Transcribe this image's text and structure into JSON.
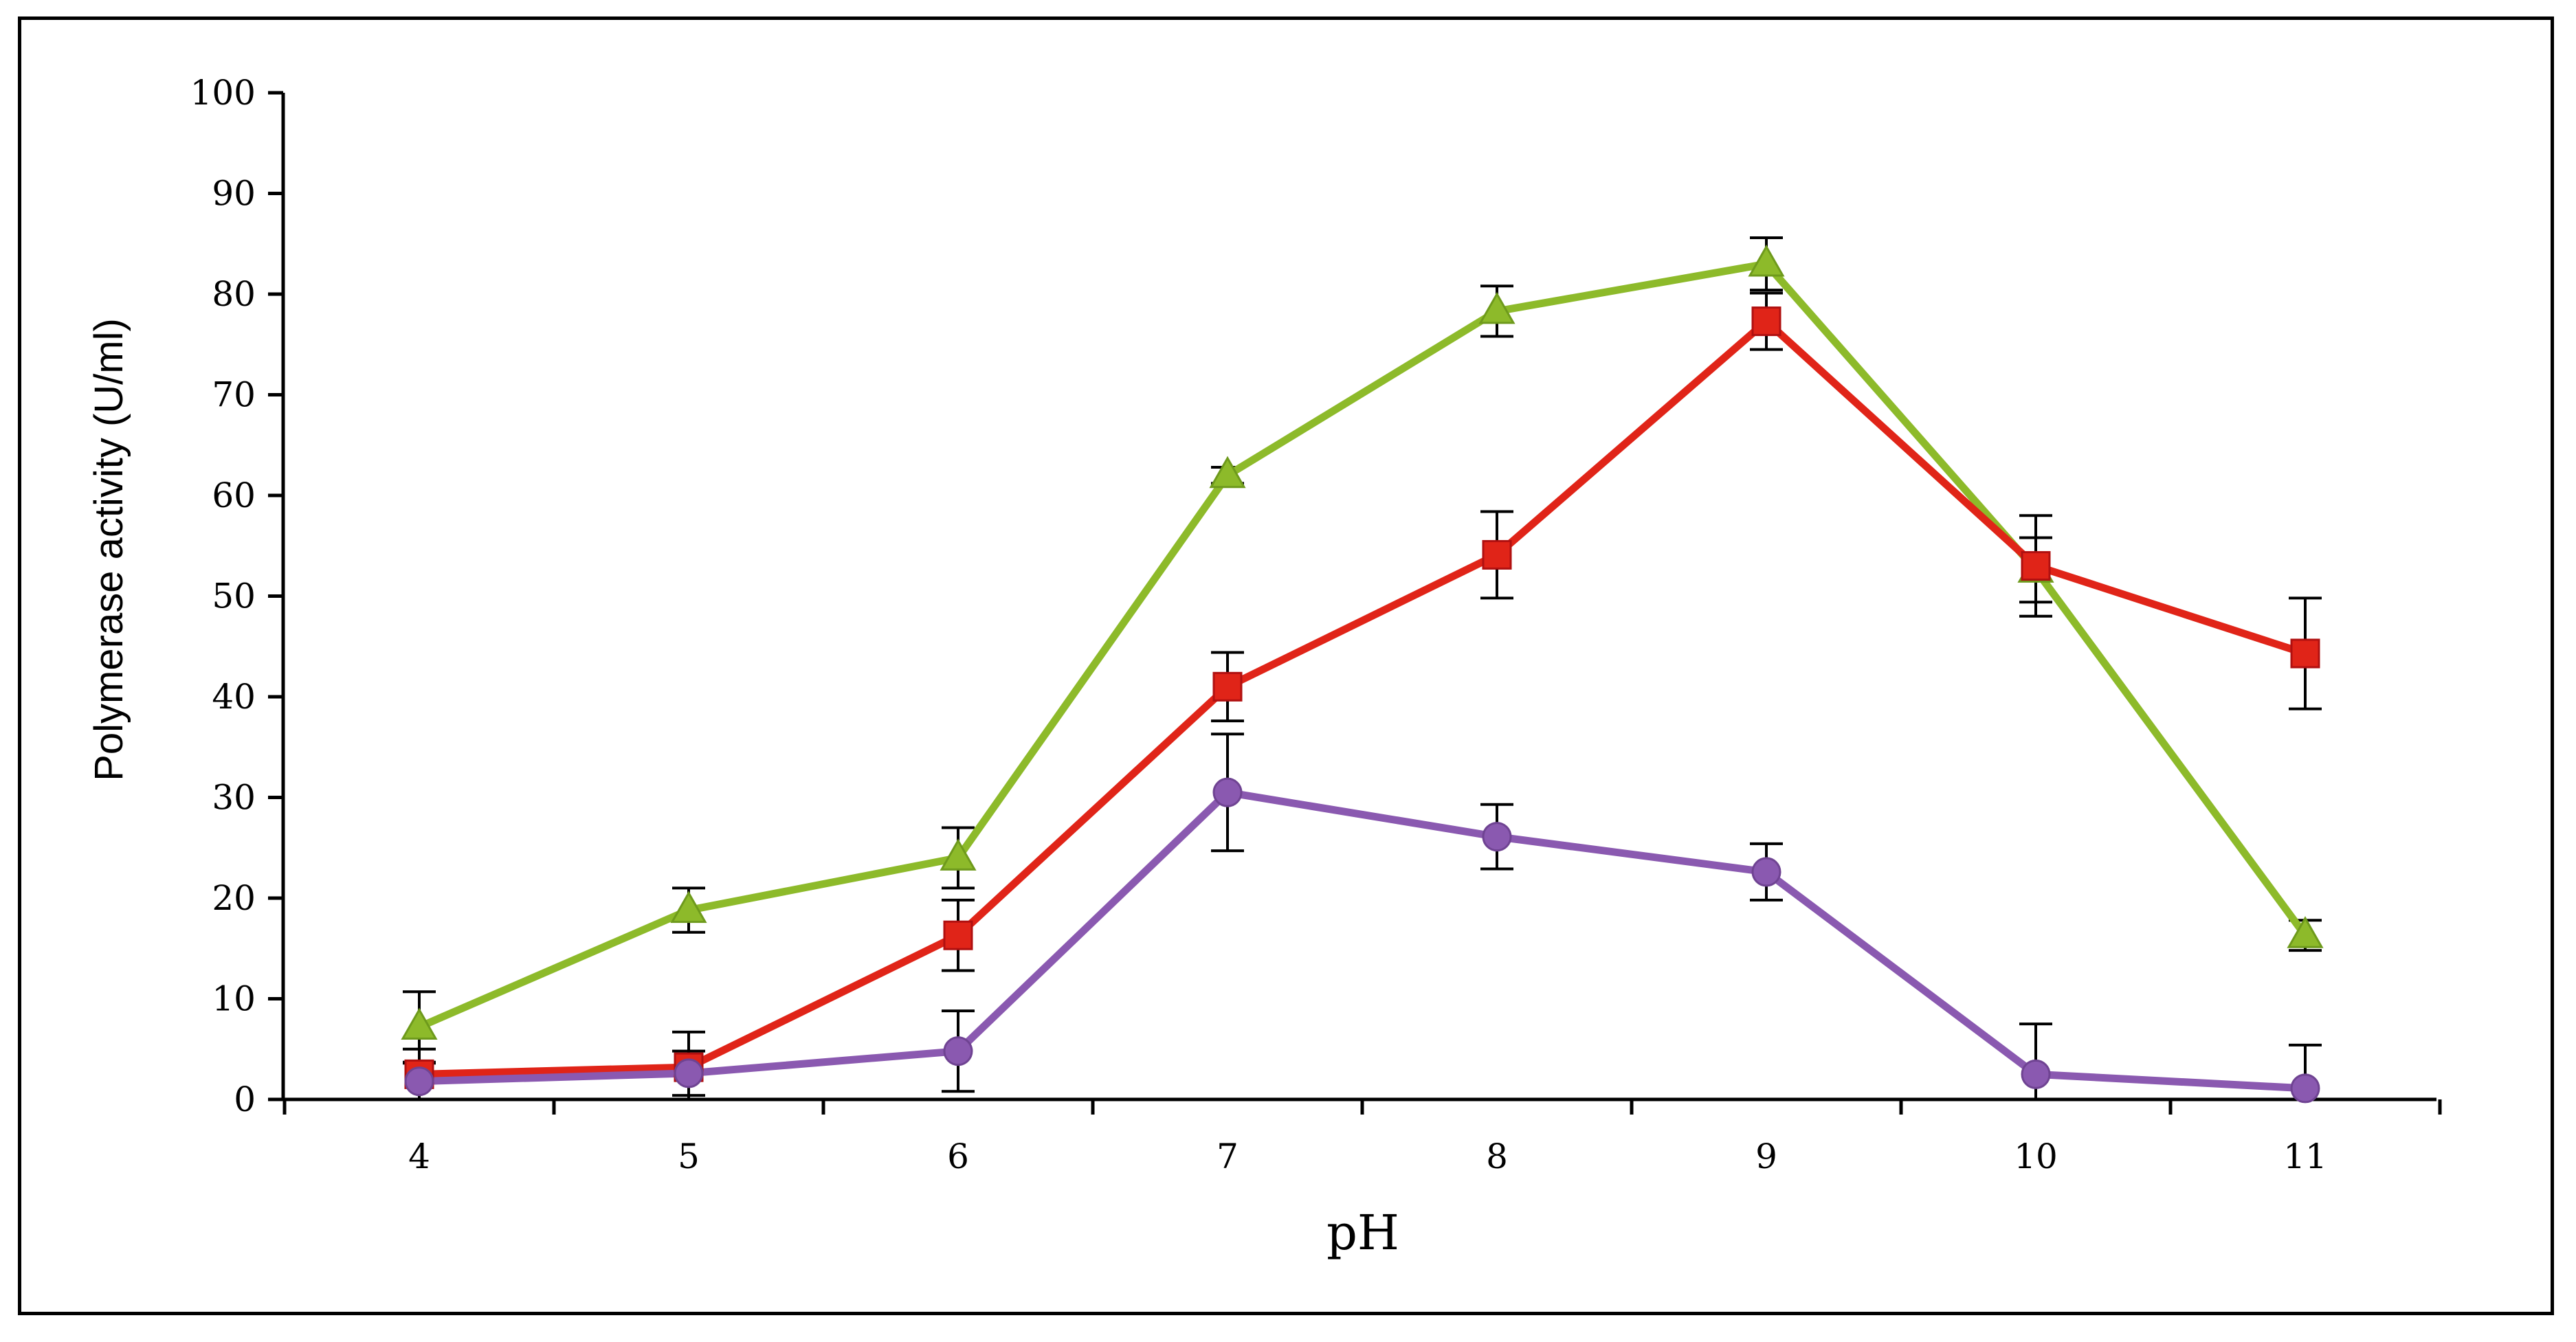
{
  "chart_data": {
    "type": "line",
    "title": "",
    "xlabel": "pH",
    "ylabel": "Polymerase activity (U/ml)",
    "categories": [
      "4",
      "5",
      "6",
      "7",
      "8",
      "9",
      "10",
      "11"
    ],
    "ylim": [
      0,
      100
    ],
    "yticks": [
      "0",
      "10",
      "20",
      "30",
      "40",
      "50",
      "60",
      "70",
      "80",
      "90",
      "100"
    ],
    "grid": false,
    "legend": "none",
    "series": [
      {
        "name": "green-triangle-series",
        "color": "#8DBA2A",
        "marker": "triangle",
        "values": [
          7.2,
          18.8,
          24,
          62,
          78.3,
          83,
          52.6,
          16.3
        ],
        "errors": [
          3.5,
          2.2,
          3,
          0.8,
          2.5,
          2.6,
          3.2,
          1.5
        ]
      },
      {
        "name": "red-square-series",
        "color": "#E02418",
        "marker": "square",
        "values": [
          2.5,
          3.2,
          16.3,
          41,
          54.1,
          77.3,
          53,
          44.3
        ],
        "errors": [
          2.5,
          3.5,
          3.5,
          3.4,
          4.3,
          2.8,
          5,
          5.5
        ]
      },
      {
        "name": "purple-circle-series",
        "color": "#8A59B0",
        "marker": "circle",
        "values": [
          1.8,
          2.6,
          4.8,
          30.5,
          26.1,
          22.6,
          2.5,
          1.1
        ],
        "errors": [
          1.8,
          2.2,
          4,
          5.8,
          3.2,
          2.8,
          5,
          4.3
        ]
      }
    ]
  }
}
